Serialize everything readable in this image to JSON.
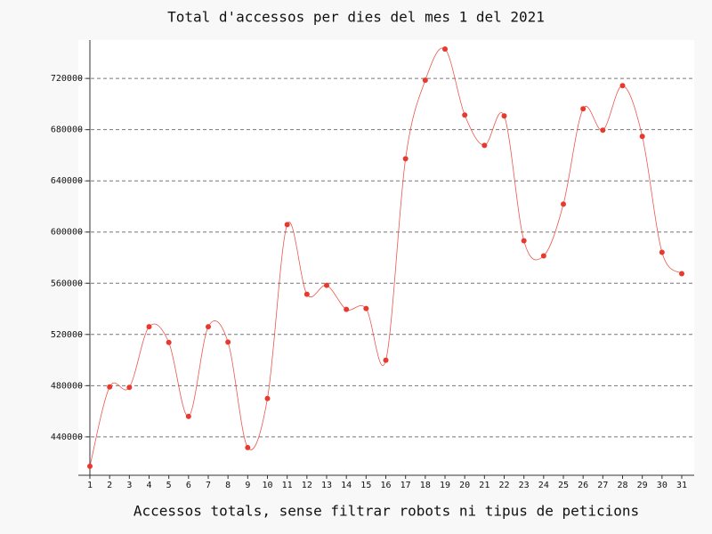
{
  "chart_data": {
    "type": "line",
    "title": "Total d'accessos per dies del mes 1 del 2021",
    "x_label": "Accessos totals, sense filtrar robots ni tipus de peticions",
    "categories": [
      "1",
      "2",
      "3",
      "4",
      "5",
      "6",
      "7",
      "8",
      "9",
      "10",
      "11",
      "12",
      "13",
      "14",
      "15",
      "16",
      "17",
      "18",
      "19",
      "20",
      "21",
      "22",
      "23",
      "24",
      "25",
      "26",
      "27",
      "28",
      "29",
      "30",
      "31"
    ],
    "series": [
      {
        "name": "Accessos",
        "color": "#e8392f",
        "values": [
          417000,
          479000,
          478700,
          526000,
          513800,
          456000,
          526000,
          514000,
          431600,
          470000,
          605800,
          551400,
          558400,
          539600,
          540300,
          499900,
          657300,
          718600,
          743000,
          691400,
          667700,
          690700,
          593200,
          581400,
          621800,
          696300,
          679600,
          714400,
          674700,
          584200,
          567500
        ]
      }
    ],
    "ylim": [
      410000,
      750000
    ],
    "yticks": [
      440000,
      480000,
      520000,
      560000,
      600000,
      640000,
      680000,
      720000
    ],
    "grid": true
  }
}
